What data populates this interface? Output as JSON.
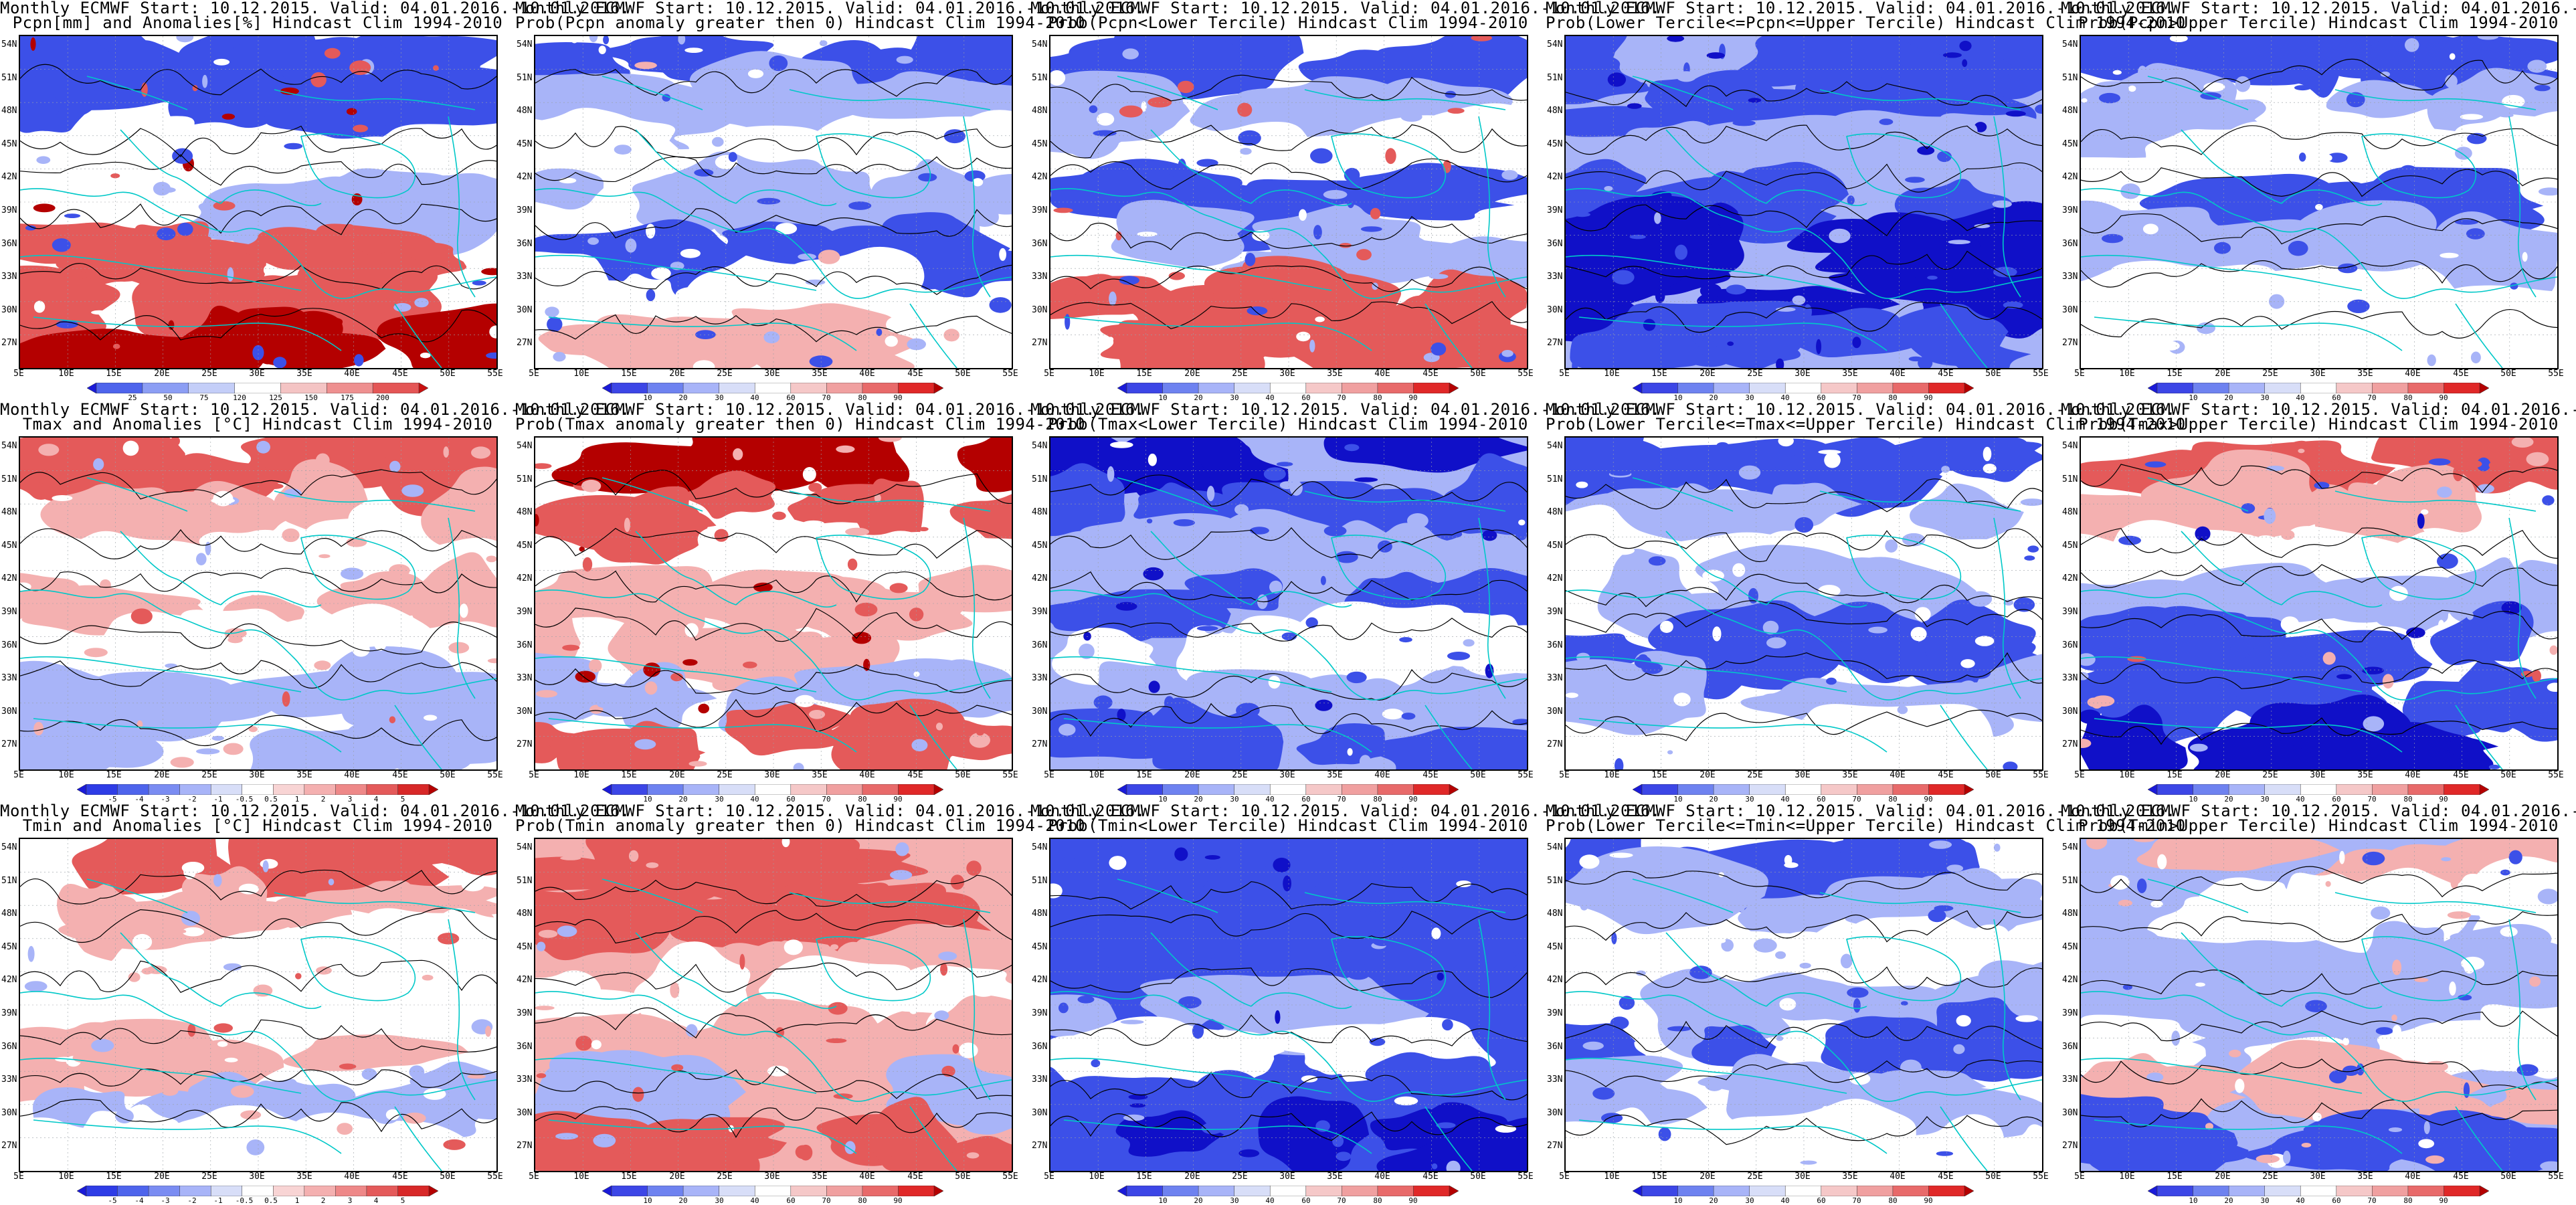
{
  "common": {
    "title_line1": "Monthly ECMWF Start: 10.12.2015. Valid: 04.01.2016.-10.01.2016.",
    "lat_labels": [
      "54N",
      "51N",
      "48N",
      "45N",
      "42N",
      "39N",
      "36N",
      "33N",
      "30N",
      "27N"
    ],
    "lon_labels": [
      "5E",
      "10E",
      "15E",
      "20E",
      "25E",
      "30E",
      "35E",
      "40E",
      "45E",
      "50E",
      "55E"
    ]
  },
  "panels": [
    {
      "title2": "Pcpn[mm] and Anomalies[%] Hindcast Clim 1994-2010",
      "scheme": "pcpn",
      "ticks": [
        "25",
        "50",
        "75",
        "120",
        "125",
        "150",
        "175",
        "200"
      ]
    },
    {
      "title2": "Prob(Pcpn anomaly greater then 0) Hindcast Clim 1994-2010",
      "scheme": "prob",
      "ticks": [
        "10",
        "20",
        "30",
        "40",
        "60",
        "70",
        "80",
        "90"
      ]
    },
    {
      "title2": "Prob(Pcpn<Lower Tercile) Hindcast Clim 1994-2010",
      "scheme": "prob",
      "ticks": [
        "10",
        "20",
        "30",
        "40",
        "60",
        "70",
        "80",
        "90"
      ]
    },
    {
      "title2": "Prob(Lower Tercile<=Pcpn<=Upper Tercile) Hindcast Clim 1994-2010",
      "scheme": "prob",
      "ticks": [
        "10",
        "20",
        "30",
        "40",
        "60",
        "70",
        "80",
        "90"
      ]
    },
    {
      "title2": "Prob(Pcpn>Upper Tercile) Hindcast Clim 1994-2010",
      "scheme": "prob",
      "ticks": [
        "10",
        "20",
        "30",
        "40",
        "60",
        "70",
        "80",
        "90"
      ]
    },
    {
      "title2": "Tmax and Anomalies [°C] Hindcast Clim 1994-2010",
      "scheme": "temp",
      "ticks": [
        "-5",
        "-4",
        "-3",
        "-2",
        "-1",
        "-0.5",
        "0.5",
        "1",
        "2",
        "3",
        "4",
        "5"
      ]
    },
    {
      "title2": "Prob(Tmax anomaly greater then 0) Hindcast Clim 1994-2010",
      "scheme": "prob",
      "ticks": [
        "10",
        "20",
        "30",
        "40",
        "60",
        "70",
        "80",
        "90"
      ]
    },
    {
      "title2": "Prob(Tmax<Lower Tercile) Hindcast Clim 1994-2010",
      "scheme": "prob",
      "ticks": [
        "10",
        "20",
        "30",
        "40",
        "60",
        "70",
        "80",
        "90"
      ]
    },
    {
      "title2": "Prob(Lower Tercile<=Tmax<=Upper Tercile) Hindcast Clim 1994-2010",
      "scheme": "prob",
      "ticks": [
        "10",
        "20",
        "30",
        "40",
        "60",
        "70",
        "80",
        "90"
      ]
    },
    {
      "title2": "Prob(Tmax>Upper Tercile) Hindcast Clim 1994-2010",
      "scheme": "prob",
      "ticks": [
        "10",
        "20",
        "30",
        "40",
        "60",
        "70",
        "80",
        "90"
      ]
    },
    {
      "title2": "Tmin and Anomalies [°C] Hindcast Clim 1994-2010",
      "scheme": "temp",
      "ticks": [
        "-5",
        "-4",
        "-3",
        "-2",
        "-1",
        "-0.5",
        "0.5",
        "1",
        "2",
        "3",
        "4",
        "5"
      ]
    },
    {
      "title2": "Prob(Tmin anomaly greater then 0) Hindcast Clim 1994-2010",
      "scheme": "prob",
      "ticks": [
        "10",
        "20",
        "30",
        "40",
        "60",
        "70",
        "80",
        "90"
      ]
    },
    {
      "title2": "Prob(Tmin<Lower Tercile) Hindcast Clim 1994-2010",
      "scheme": "prob",
      "ticks": [
        "10",
        "20",
        "30",
        "40",
        "60",
        "70",
        "80",
        "90"
      ]
    },
    {
      "title2": "Prob(Lower Tercile<=Tmin<=Upper Tercile) Hindcast Clim 1994-2010",
      "scheme": "prob",
      "ticks": [
        "10",
        "20",
        "30",
        "40",
        "60",
        "70",
        "80",
        "90"
      ]
    },
    {
      "title2": "Prob(Tmin>Upper Tercile) Hindcast Clim 1994-2010",
      "scheme": "prob",
      "ticks": [
        "10",
        "20",
        "30",
        "40",
        "60",
        "70",
        "80",
        "90"
      ]
    }
  ],
  "colors": {
    "prob": [
      "#1a1ad8",
      "#3c46e6",
      "#6e82f0",
      "#a8b4f8",
      "#d8def8",
      "#ffffff",
      "#f5c8c8",
      "#f0a0a0",
      "#e86a6a",
      "#e02828",
      "#b40000"
    ],
    "temp": [
      "#1a1ad8",
      "#2e3ce6",
      "#4e64ec",
      "#7a8cf2",
      "#a8b4f8",
      "#d8def8",
      "#ffffff",
      "#f8d4d4",
      "#f4b0b0",
      "#ee8888",
      "#e45a5a",
      "#d82828",
      "#b40000"
    ],
    "pcpn": [
      "#1a1ad8",
      "#4e64ec",
      "#8c9ef4",
      "#c4cef8",
      "#ffffff",
      "#f4c4c4",
      "#ee9090",
      "#e45656",
      "#c81010"
    ],
    "coast": "#00c8c8",
    "contour": "#000000"
  },
  "map_fill_classes": {
    "panel_0": [
      "blue",
      "blue",
      "white",
      "lightblue",
      "red",
      "red",
      "darkred"
    ],
    "panel_1": [
      "blue",
      "lightblue",
      "white",
      "lightblue",
      "blue",
      "white",
      "lightred"
    ],
    "panel_2": [
      "blue",
      "lightblue",
      "white",
      "blue",
      "lightblue",
      "red",
      "red"
    ],
    "panel_3": [
      "blue",
      "blue",
      "lightblue",
      "blue",
      "darkblue",
      "darkblue",
      "blue"
    ],
    "panel_4": [
      "blue",
      "lightblue",
      "white",
      "blue",
      "lightblue",
      "white",
      "white"
    ],
    "panel_5": [
      "red",
      "lightred",
      "white",
      "lightred",
      "white",
      "lightblue",
      "lightblue"
    ],
    "panel_6": [
      "darkred",
      "red",
      "white",
      "lightred",
      "lightred",
      "lightblue",
      "red"
    ],
    "panel_7": [
      "darkblue",
      "blue",
      "lightblue",
      "blue",
      "white",
      "lightblue",
      "blue"
    ],
    "panel_8": [
      "blue",
      "lightblue",
      "white",
      "lightblue",
      "blue",
      "lightblue",
      "white"
    ],
    "panel_9": [
      "red",
      "lightred",
      "white",
      "lightblue",
      "blue",
      "blue",
      "darkblue"
    ],
    "panel_10": [
      "red",
      "lightred",
      "white",
      "white",
      "lightred",
      "lightblue",
      "white"
    ],
    "panel_11": [
      "red",
      "red",
      "lightred",
      "white",
      "lightred",
      "lightblue",
      "red"
    ],
    "panel_12": [
      "blue",
      "blue",
      "blue",
      "lightblue",
      "white",
      "blue",
      "darkblue"
    ],
    "panel_13": [
      "blue",
      "lightblue",
      "white",
      "lightblue",
      "blue",
      "lightblue",
      "white"
    ],
    "panel_14": [
      "lightred",
      "white",
      "lightblue",
      "lightblue",
      "white",
      "lightred",
      "blue"
    ]
  }
}
